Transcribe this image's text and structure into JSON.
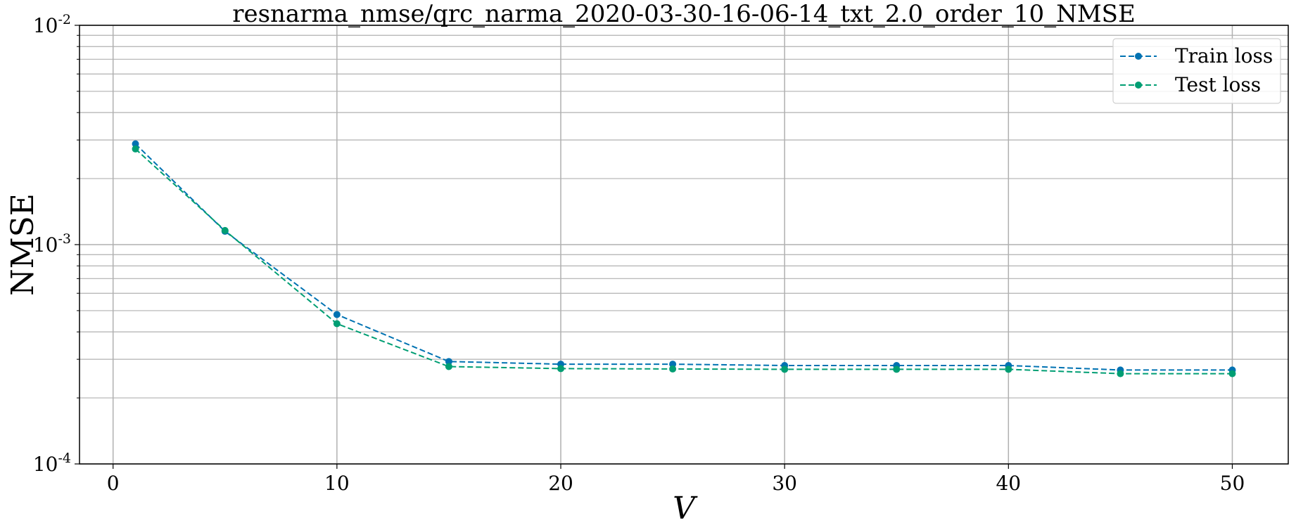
{
  "chart_data": {
    "type": "line",
    "title": "resnarma_nmse/qrc_narma_2020-03-30-16-06-14_txt_2.0_order_10_NMSE",
    "xlabel": "V",
    "ylabel": "NMSE",
    "xlim": [
      -1.5,
      52.5
    ],
    "ylim": [
      0.0001,
      0.01
    ],
    "yscale": "log",
    "grid": true,
    "legend_position": "top-right",
    "x_ticks": [
      0,
      10,
      20,
      30,
      40,
      50
    ],
    "x_tick_labels": [
      "0",
      "10",
      "20",
      "30",
      "40",
      "50"
    ],
    "y_ticks": [
      0.0001,
      0.001,
      0.01
    ],
    "y_tick_labels": [
      {
        "base": "10",
        "exp": "-4"
      },
      {
        "base": "10",
        "exp": "-3"
      },
      {
        "base": "10",
        "exp": "-2"
      }
    ],
    "x": [
      1,
      5,
      10,
      15,
      20,
      25,
      30,
      35,
      40,
      45,
      50
    ],
    "series": [
      {
        "name": "Train loss",
        "color": "#0072b2",
        "style": "dashed",
        "marker": "circle",
        "values": [
          0.00288,
          0.00115,
          0.00048,
          0.000293,
          0.000285,
          0.000285,
          0.000281,
          0.000281,
          0.000281,
          0.000268,
          0.000268
        ]
      },
      {
        "name": "Test loss",
        "color": "#009e73",
        "style": "dashed",
        "marker": "circle",
        "values": [
          0.00273,
          0.00116,
          0.000436,
          0.000278,
          0.000272,
          0.000271,
          0.00027,
          0.00027,
          0.00027,
          0.000258,
          0.000258
        ]
      }
    ]
  }
}
